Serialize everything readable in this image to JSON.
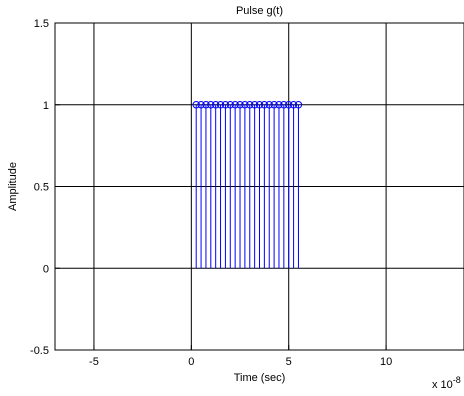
{
  "chart_data": {
    "type": "stem",
    "title": "Pulse g(t)",
    "xlabel": "Time (sec)",
    "ylabel": "Amplitude",
    "x_exponent_label": "x 10",
    "x_exponent_power": "-8",
    "xlim": [
      -7,
      14
    ],
    "ylim": [
      -0.5,
      1.5
    ],
    "xticks": [
      -5,
      0,
      5,
      10
    ],
    "xtick_labels": [
      "-5",
      "0",
      "5",
      "10"
    ],
    "yticks": [
      -0.5,
      0,
      0.5,
      1,
      1.5
    ],
    "ytick_labels": [
      "-0.5",
      "0",
      "0.5",
      "1",
      "1.5"
    ],
    "grid": true,
    "series": [
      {
        "color": "#0000ff",
        "x": [
          0.25,
          0.5,
          0.75,
          1.0,
          1.25,
          1.5,
          1.75,
          2.0,
          2.25,
          2.5,
          2.75,
          3.0,
          3.25,
          3.5,
          3.75,
          4.0,
          4.25,
          4.5,
          4.75,
          5.0,
          5.25,
          5.5
        ],
        "y": [
          1,
          1,
          1,
          1,
          1,
          1,
          1,
          1,
          1,
          1,
          1,
          1,
          1,
          1,
          1,
          1,
          1,
          1,
          1,
          1,
          1,
          1
        ]
      }
    ]
  }
}
